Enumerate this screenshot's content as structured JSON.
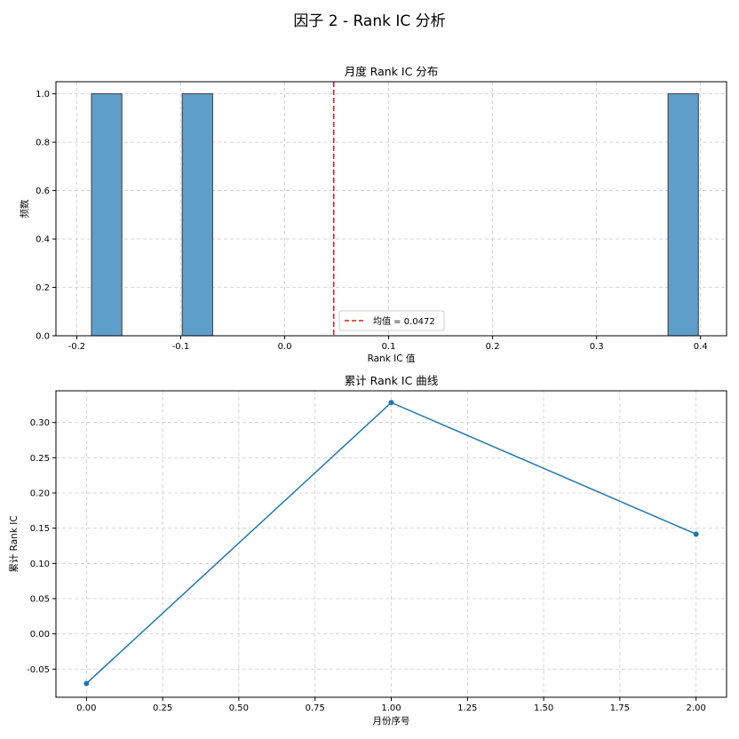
{
  "figure": {
    "title": "因子 2 - Rank IC 分析"
  },
  "chart_data": [
    {
      "type": "bar",
      "subtype": "histogram",
      "title": "月度 Rank IC 分布",
      "xlabel": "Rank IC 值",
      "ylabel": "频数",
      "xlim": [
        -0.22,
        0.425
      ],
      "ylim": [
        0,
        1.05
      ],
      "xticks": [
        -0.2,
        -0.1,
        0.0,
        0.1,
        0.2,
        0.3,
        0.4
      ],
      "xtick_labels": [
        "-0.2",
        "-0.1",
        "0.0",
        "0.1",
        "0.2",
        "0.3",
        "0.4"
      ],
      "yticks": [
        0.0,
        0.2,
        0.4,
        0.6,
        0.8,
        1.0
      ],
      "ytick_labels": [
        "0.0",
        "0.2",
        "0.4",
        "0.6",
        "0.8",
        "1.0"
      ],
      "bins": [
        {
          "x0": -0.1858,
          "x1": -0.1566,
          "count": 1
        },
        {
          "x0": -0.0985,
          "x1": -0.0693,
          "count": 1
        },
        {
          "x0": 0.3687,
          "x1": 0.3979,
          "count": 1
        }
      ],
      "bar_color": "#5f9ecb",
      "mean_line": {
        "x": 0.0472,
        "label": "均值 = 0.0472",
        "color": "#e41a1c"
      },
      "legend_position": "lower center",
      "grid": true
    },
    {
      "type": "line",
      "title": "累计 Rank IC 曲线",
      "xlabel": "月份序号",
      "ylabel": "累计 Rank IC",
      "xlim": [
        -0.1,
        2.1
      ],
      "ylim": [
        -0.09,
        0.345
      ],
      "xticks": [
        0.0,
        0.25,
        0.5,
        0.75,
        1.0,
        1.25,
        1.5,
        1.75,
        2.0
      ],
      "xtick_labels": [
        "0.00",
        "0.25",
        "0.50",
        "0.75",
        "1.00",
        "1.25",
        "1.50",
        "1.75",
        "2.00"
      ],
      "yticks": [
        -0.05,
        0.0,
        0.05,
        0.1,
        0.15,
        0.2,
        0.25,
        0.3
      ],
      "ytick_labels": [
        "-0.05",
        "0.00",
        "0.05",
        "0.10",
        "0.15",
        "0.20",
        "0.25",
        "0.30"
      ],
      "series": [
        {
          "x": [
            0,
            1,
            2
          ],
          "y": [
            -0.0704,
            0.3283,
            0.1416
          ],
          "color": "#1f77b4",
          "marker": "circle"
        }
      ],
      "grid": true
    }
  ]
}
